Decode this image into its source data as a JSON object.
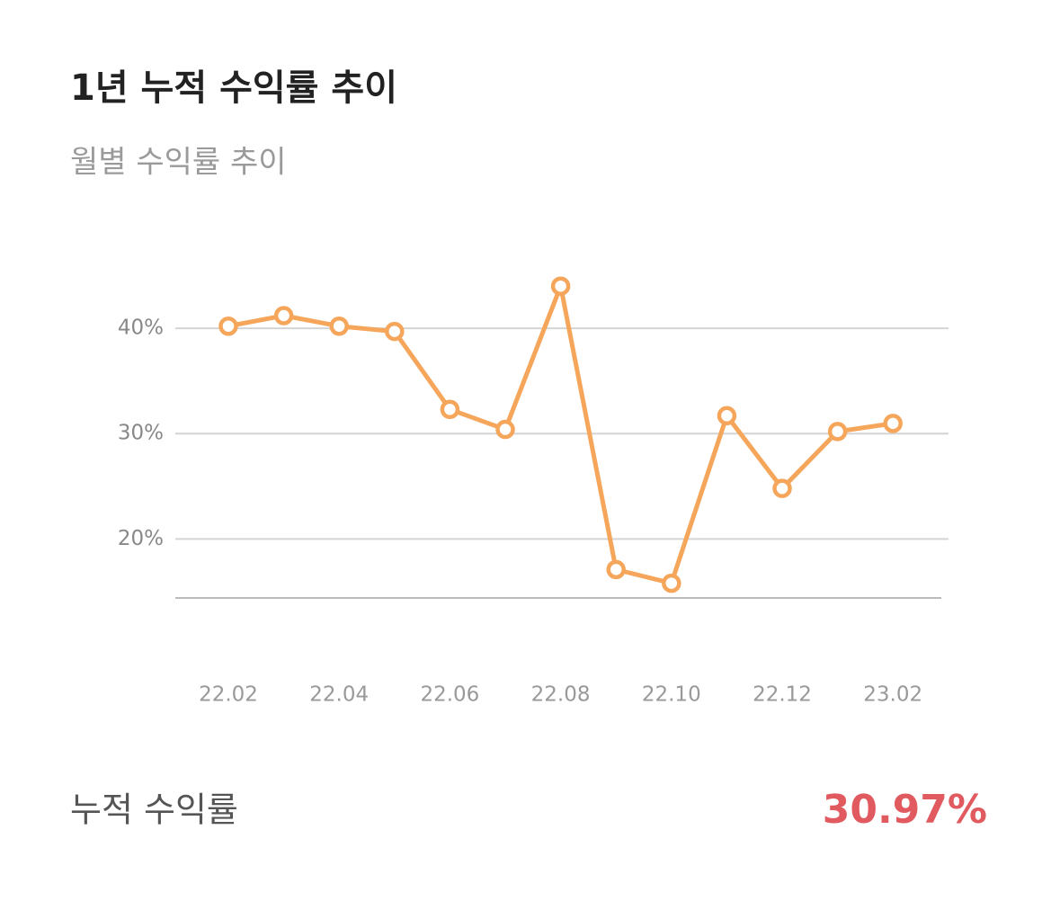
{
  "chart_data": {
    "type": "line",
    "title": "1년 누적 수익률 추이",
    "subtitle": "월별 수익률 추이",
    "categories": [
      "22.02",
      null,
      "22.04",
      null,
      "22.06",
      null,
      "22.08",
      null,
      "22.10",
      null,
      "22.12",
      null,
      "23.02"
    ],
    "series": [
      {
        "color": "#f5a65b",
        "values": [
          40.2,
          41.2,
          40.2,
          39.7,
          32.3,
          30.4,
          44.0,
          17.1,
          15.8,
          31.7,
          24.8,
          30.2,
          30.97
        ]
      }
    ],
    "ylim": [
      14.4,
      44.7
    ],
    "yticks": [
      {
        "value": 20,
        "label": "20%"
      },
      {
        "value": 30,
        "label": "30%"
      },
      {
        "value": 40,
        "label": "40%"
      }
    ],
    "grid": true
  },
  "summary": {
    "label": "누적 수익률",
    "value": "30.97%"
  }
}
